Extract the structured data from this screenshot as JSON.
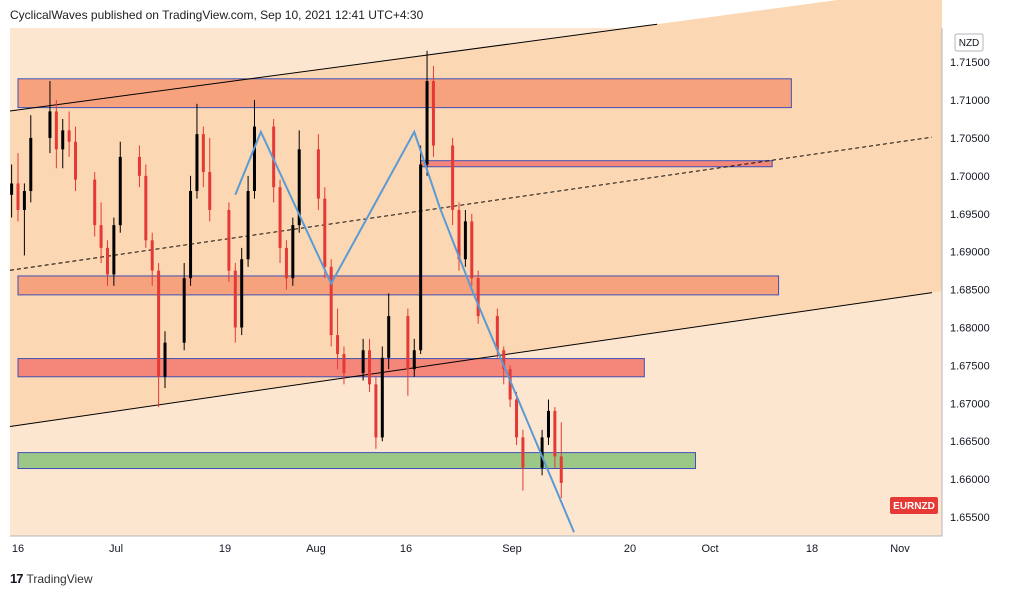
{
  "header": {
    "attribution": "CyclicalWaves published on TradingView.com, Sep 10, 2021 12:41 UTC+4:30"
  },
  "footer": {
    "brand": "TradingView",
    "logo_icon": "tradingview-logo-icon"
  },
  "chart_data": {
    "type": "candlestick",
    "symbol": "EURNZD",
    "currency": "NZD",
    "x_ticks": [
      "16",
      "Jul",
      "19",
      "Aug",
      "16",
      "Sep",
      "20",
      "Oct",
      "18",
      "Nov"
    ],
    "y_ticks": [
      1.715,
      1.71,
      1.705,
      1.7,
      1.695,
      1.69,
      1.685,
      1.68,
      1.675,
      1.67,
      1.665,
      1.66,
      1.655
    ],
    "y_tick_labels": [
      "1.71500",
      "1.71000",
      "1.70500",
      "1.70000",
      "1.69500",
      "1.69000",
      "1.68500",
      "1.68000",
      "1.67500",
      "1.67000",
      "1.66500",
      "1.66000",
      "1.65500"
    ],
    "ylim": [
      1.6525,
      1.7195
    ],
    "colors": {
      "background": "#fce6cf",
      "channel_fill": "#fbd8b3",
      "up_candle": "#000000",
      "down_candle": "#e53935",
      "zone_orange": "#f6a27c",
      "zone_red": "#f4877a",
      "zone_green": "#9cc887",
      "wave_path": "#5b9bd5",
      "symbol_badge": "#e53935"
    },
    "zones": [
      {
        "kind": "resistance",
        "from": "Jun 16",
        "to": "Oct 15",
        "low": 1.709,
        "high": 1.7128,
        "color": "#f6a27c"
      },
      {
        "kind": "resistance",
        "from": "Aug 18",
        "to": "Oct 12",
        "low": 1.7012,
        "high": 1.702,
        "color": "#f4877a"
      },
      {
        "kind": "support-resistance",
        "from": "Jun 16",
        "to": "Oct 13",
        "low": 1.6843,
        "high": 1.6868,
        "color": "#f6a27c"
      },
      {
        "kind": "support-resistance",
        "from": "Jun 16",
        "to": "Sep 22",
        "low": 1.6735,
        "high": 1.6759,
        "color": "#f4877a"
      },
      {
        "kind": "support",
        "from": "Jun 16",
        "to": "Sep 30",
        "low": 1.6614,
        "high": 1.6635,
        "color": "#9cc887"
      }
    ],
    "trendlines": [
      {
        "name": "channel-top",
        "style": "solid",
        "p1": {
          "date": "Jun 16",
          "value": 1.7087
        },
        "p2": {
          "date": "Sep 24",
          "value": 1.72
        }
      },
      {
        "name": "channel-mid",
        "style": "dashed",
        "p1": {
          "date": "Jun 16",
          "value": 1.6877
        },
        "p2": {
          "date": "Nov 6",
          "value": 1.7051
        }
      },
      {
        "name": "channel-bottom",
        "style": "solid",
        "p1": {
          "date": "Jun 16",
          "value": 1.6671
        },
        "p2": {
          "date": "Nov 6",
          "value": 1.6846
        }
      }
    ],
    "wave_path": [
      {
        "date": "Jul 20",
        "value": 1.6975
      },
      {
        "date": "Jul 24",
        "value": 1.7058
      },
      {
        "date": "Aug 4",
        "value": 1.6858
      },
      {
        "date": "Aug 17",
        "value": 1.7058
      },
      {
        "date": "Aug 21",
        "value": 1.6958
      },
      {
        "date": "Aug 26",
        "value": 1.685
      },
      {
        "date": "Sep 11",
        "value": 1.653
      }
    ],
    "candles": [
      {
        "date": "Jun 15",
        "open": 1.6975,
        "high": 1.7015,
        "low": 1.6945,
        "close": 1.699
      },
      {
        "date": "Jun 16",
        "open": 1.699,
        "high": 1.703,
        "low": 1.694,
        "close": 1.6955
      },
      {
        "date": "Jun 17",
        "open": 1.6955,
        "high": 1.699,
        "low": 1.6895,
        "close": 1.698
      },
      {
        "date": "Jun 18",
        "open": 1.698,
        "high": 1.708,
        "low": 1.6965,
        "close": 1.705
      },
      {
        "date": "Jun 21",
        "open": 1.705,
        "high": 1.7125,
        "low": 1.703,
        "close": 1.7085
      },
      {
        "date": "Jun 22",
        "open": 1.7085,
        "high": 1.71,
        "low": 1.701,
        "close": 1.7035
      },
      {
        "date": "Jun 23",
        "open": 1.7035,
        "high": 1.7075,
        "low": 1.701,
        "close": 1.706
      },
      {
        "date": "Jun 24",
        "open": 1.706,
        "high": 1.7085,
        "low": 1.7025,
        "close": 1.7045
      },
      {
        "date": "Jun 25",
        "open": 1.7045,
        "high": 1.7065,
        "low": 1.698,
        "close": 1.6995
      },
      {
        "date": "Jun 28",
        "open": 1.6995,
        "high": 1.7005,
        "low": 1.692,
        "close": 1.6935
      },
      {
        "date": "Jun 29",
        "open": 1.6935,
        "high": 1.6965,
        "low": 1.6885,
        "close": 1.6905
      },
      {
        "date": "Jun 30",
        "open": 1.6905,
        "high": 1.6915,
        "low": 1.6855,
        "close": 1.687
      },
      {
        "date": "Jul 1",
        "open": 1.687,
        "high": 1.6945,
        "low": 1.6855,
        "close": 1.6935
      },
      {
        "date": "Jul 2",
        "open": 1.6935,
        "high": 1.7045,
        "low": 1.6925,
        "close": 1.7025
      },
      {
        "date": "Jul 5",
        "open": 1.7025,
        "high": 1.704,
        "low": 1.6985,
        "close": 1.7
      },
      {
        "date": "Jul 6",
        "open": 1.7,
        "high": 1.7015,
        "low": 1.6905,
        "close": 1.6915
      },
      {
        "date": "Jul 7",
        "open": 1.6915,
        "high": 1.6925,
        "low": 1.6855,
        "close": 1.6875
      },
      {
        "date": "Jul 8",
        "open": 1.6875,
        "high": 1.6885,
        "low": 1.6695,
        "close": 1.6735
      },
      {
        "date": "Jul 9",
        "open": 1.6735,
        "high": 1.6795,
        "low": 1.672,
        "close": 1.678
      },
      {
        "date": "Jul 12",
        "open": 1.678,
        "high": 1.6885,
        "low": 1.677,
        "close": 1.6865
      },
      {
        "date": "Jul 13",
        "open": 1.6865,
        "high": 1.7,
        "low": 1.6855,
        "close": 1.698
      },
      {
        "date": "Jul 14",
        "open": 1.698,
        "high": 1.7095,
        "low": 1.697,
        "close": 1.7055
      },
      {
        "date": "Jul 15",
        "open": 1.7055,
        "high": 1.7065,
        "low": 1.6985,
        "close": 1.7005
      },
      {
        "date": "Jul 16",
        "open": 1.7005,
        "high": 1.705,
        "low": 1.694,
        "close": 1.6955
      },
      {
        "date": "Jul 19",
        "open": 1.6955,
        "high": 1.6965,
        "low": 1.686,
        "close": 1.6875
      },
      {
        "date": "Jul 20",
        "open": 1.6875,
        "high": 1.6885,
        "low": 1.678,
        "close": 1.68
      },
      {
        "date": "Jul 21",
        "open": 1.68,
        "high": 1.6905,
        "low": 1.679,
        "close": 1.689
      },
      {
        "date": "Jul 22",
        "open": 1.689,
        "high": 1.7,
        "low": 1.688,
        "close": 1.698
      },
      {
        "date": "Jul 23",
        "open": 1.698,
        "high": 1.71,
        "low": 1.697,
        "close": 1.7065
      },
      {
        "date": "Jul 26",
        "open": 1.7065,
        "high": 1.7075,
        "low": 1.6965,
        "close": 1.6985
      },
      {
        "date": "Jul 27",
        "open": 1.6985,
        "high": 1.6995,
        "low": 1.6885,
        "close": 1.6905
      },
      {
        "date": "Jul 28",
        "open": 1.6905,
        "high": 1.6915,
        "low": 1.685,
        "close": 1.6865
      },
      {
        "date": "Jul 29",
        "open": 1.6865,
        "high": 1.6945,
        "low": 1.6855,
        "close": 1.6935
      },
      {
        "date": "Jul 30",
        "open": 1.6935,
        "high": 1.706,
        "low": 1.6925,
        "close": 1.7035
      },
      {
        "date": "Aug 2",
        "open": 1.7035,
        "high": 1.7055,
        "low": 1.6955,
        "close": 1.697
      },
      {
        "date": "Aug 3",
        "open": 1.697,
        "high": 1.6985,
        "low": 1.6865,
        "close": 1.688
      },
      {
        "date": "Aug 4",
        "open": 1.688,
        "high": 1.689,
        "low": 1.6775,
        "close": 1.679
      },
      {
        "date": "Aug 5",
        "open": 1.679,
        "high": 1.6825,
        "low": 1.6745,
        "close": 1.6765
      },
      {
        "date": "Aug 6",
        "open": 1.6765,
        "high": 1.6775,
        "low": 1.6725,
        "close": 1.674
      },
      {
        "date": "Aug 9",
        "open": 1.674,
        "high": 1.6785,
        "low": 1.673,
        "close": 1.677
      },
      {
        "date": "Aug 10",
        "open": 1.677,
        "high": 1.6785,
        "low": 1.6715,
        "close": 1.6725
      },
      {
        "date": "Aug 11",
        "open": 1.6725,
        "high": 1.6735,
        "low": 1.664,
        "close": 1.6655
      },
      {
        "date": "Aug 12",
        "open": 1.6655,
        "high": 1.6775,
        "low": 1.665,
        "close": 1.676
      },
      {
        "date": "Aug 13",
        "open": 1.676,
        "high": 1.6845,
        "low": 1.6745,
        "close": 1.6815
      },
      {
        "date": "Aug 16",
        "open": 1.6815,
        "high": 1.6825,
        "low": 1.671,
        "close": 1.6745
      },
      {
        "date": "Aug 17",
        "open": 1.6745,
        "high": 1.6785,
        "low": 1.6735,
        "close": 1.677
      },
      {
        "date": "Aug 18",
        "open": 1.677,
        "high": 1.704,
        "low": 1.6765,
        "close": 1.7015
      },
      {
        "date": "Aug 19",
        "open": 1.7015,
        "high": 1.7165,
        "low": 1.7,
        "close": 1.7125
      },
      {
        "date": "Aug 20",
        "open": 1.7125,
        "high": 1.7145,
        "low": 1.7025,
        "close": 1.704
      },
      {
        "date": "Aug 23",
        "open": 1.704,
        "high": 1.705,
        "low": 1.6935,
        "close": 1.6955
      },
      {
        "date": "Aug 24",
        "open": 1.6955,
        "high": 1.6965,
        "low": 1.6875,
        "close": 1.689
      },
      {
        "date": "Aug 25",
        "open": 1.689,
        "high": 1.6955,
        "low": 1.688,
        "close": 1.694
      },
      {
        "date": "Aug 26",
        "open": 1.694,
        "high": 1.695,
        "low": 1.6855,
        "close": 1.6865
      },
      {
        "date": "Aug 27",
        "open": 1.6865,
        "high": 1.6875,
        "low": 1.6805,
        "close": 1.6815
      },
      {
        "date": "Aug 30",
        "open": 1.6815,
        "high": 1.6825,
        "low": 1.676,
        "close": 1.677
      },
      {
        "date": "Aug 31",
        "open": 1.677,
        "high": 1.6775,
        "low": 1.6725,
        "close": 1.6745
      },
      {
        "date": "Sep 1",
        "open": 1.6745,
        "high": 1.675,
        "low": 1.6695,
        "close": 1.6705
      },
      {
        "date": "Sep 2",
        "open": 1.6705,
        "high": 1.6715,
        "low": 1.6645,
        "close": 1.6655
      },
      {
        "date": "Sep 3",
        "open": 1.6655,
        "high": 1.6665,
        "low": 1.6585,
        "close": 1.6615
      },
      {
        "date": "Sep 6",
        "open": 1.6615,
        "high": 1.6665,
        "low": 1.6605,
        "close": 1.6655
      },
      {
        "date": "Sep 7",
        "open": 1.6655,
        "high": 1.6705,
        "low": 1.6645,
        "close": 1.669
      },
      {
        "date": "Sep 8",
        "open": 1.669,
        "high": 1.6695,
        "low": 1.6615,
        "close": 1.663
      },
      {
        "date": "Sep 9",
        "open": 1.663,
        "high": 1.6675,
        "low": 1.6575,
        "close": 1.6595
      }
    ]
  }
}
